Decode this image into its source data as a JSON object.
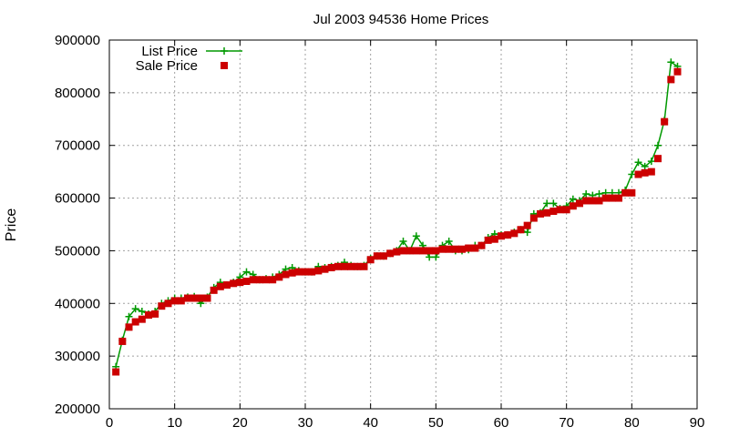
{
  "chart_data": {
    "type": "line",
    "title": "Jul 2003 94536 Home Prices",
    "xlabel": "",
    "ylabel": "Price",
    "xlim": [
      0,
      90
    ],
    "ylim": [
      200000,
      900000
    ],
    "xticks": [
      0,
      10,
      20,
      30,
      40,
      50,
      60,
      70,
      80,
      90
    ],
    "yticks": [
      200000,
      300000,
      400000,
      500000,
      600000,
      700000,
      800000,
      900000
    ],
    "grid": true,
    "legend_position": "top-left",
    "series": [
      {
        "name": "List Price",
        "color": "#009900",
        "marker": "plus",
        "line": true,
        "x": [
          1,
          2,
          3,
          4,
          5,
          6,
          7,
          8,
          9,
          10,
          11,
          12,
          13,
          14,
          15,
          16,
          17,
          18,
          19,
          20,
          21,
          22,
          23,
          24,
          25,
          26,
          27,
          28,
          29,
          30,
          31,
          32,
          33,
          34,
          35,
          36,
          37,
          38,
          39,
          40,
          41,
          42,
          43,
          44,
          45,
          46,
          47,
          48,
          49,
          50,
          51,
          52,
          53,
          54,
          55,
          56,
          57,
          58,
          59,
          60,
          61,
          62,
          63,
          64,
          65,
          66,
          67,
          68,
          69,
          70,
          71,
          72,
          73,
          74,
          75,
          76,
          77,
          78,
          79,
          80,
          81,
          82,
          83,
          84,
          85,
          86,
          87
        ],
        "y": [
          280000,
          330000,
          375000,
          390000,
          385000,
          380000,
          385000,
          400000,
          405000,
          410000,
          410000,
          412000,
          413000,
          400000,
          412000,
          430000,
          440000,
          435000,
          440000,
          450000,
          460000,
          455000,
          445000,
          447000,
          450000,
          455000,
          465000,
          468000,
          462000,
          460000,
          460000,
          470000,
          468000,
          470000,
          472000,
          478000,
          472000,
          470000,
          472000,
          485000,
          490000,
          490000,
          495000,
          500000,
          518000,
          500000,
          528000,
          510000,
          488000,
          488000,
          510000,
          518000,
          500000,
          500000,
          502000,
          510000,
          510000,
          525000,
          532000,
          530000,
          530000,
          535000,
          540000,
          535000,
          570000,
          572000,
          590000,
          590000,
          580000,
          585000,
          598000,
          595000,
          608000,
          605000,
          608000,
          610000,
          610000,
          610000,
          615000,
          645000,
          668000,
          660000,
          670000,
          700000,
          748000,
          858000,
          850000
        ]
      },
      {
        "name": "Sale Price",
        "color": "#cc0000",
        "marker": "square",
        "line": false,
        "x": [
          1,
          2,
          3,
          4,
          5,
          6,
          7,
          8,
          9,
          10,
          11,
          12,
          13,
          14,
          15,
          16,
          17,
          18,
          19,
          20,
          21,
          22,
          23,
          24,
          25,
          26,
          27,
          28,
          29,
          30,
          31,
          32,
          33,
          34,
          35,
          36,
          37,
          38,
          39,
          40,
          41,
          42,
          43,
          44,
          45,
          46,
          47,
          48,
          49,
          50,
          51,
          52,
          53,
          54,
          55,
          56,
          57,
          58,
          59,
          60,
          61,
          62,
          63,
          64,
          65,
          66,
          67,
          68,
          69,
          70,
          71,
          72,
          73,
          74,
          75,
          76,
          77,
          78,
          79,
          80,
          81,
          82,
          83,
          84,
          85,
          86,
          87
        ],
        "y": [
          270000,
          328000,
          355000,
          365000,
          370000,
          378000,
          380000,
          395000,
          400000,
          405000,
          405000,
          410000,
          410000,
          410000,
          410000,
          425000,
          432000,
          435000,
          438000,
          440000,
          442000,
          445000,
          445000,
          445000,
          445000,
          450000,
          455000,
          458000,
          460000,
          460000,
          460000,
          462000,
          465000,
          468000,
          470000,
          470000,
          470000,
          470000,
          470000,
          483000,
          490000,
          490000,
          495000,
          498000,
          500000,
          500000,
          500000,
          500000,
          500000,
          500000,
          503000,
          503000,
          503000,
          503000,
          505000,
          505000,
          510000,
          520000,
          522000,
          528000,
          530000,
          533000,
          540000,
          548000,
          562000,
          570000,
          572000,
          575000,
          578000,
          578000,
          585000,
          590000,
          595000,
          595000,
          595000,
          600000,
          600000,
          600000,
          610000,
          610000,
          645000,
          648000,
          650000,
          675000,
          745000,
          825000,
          840000
        ]
      }
    ]
  }
}
